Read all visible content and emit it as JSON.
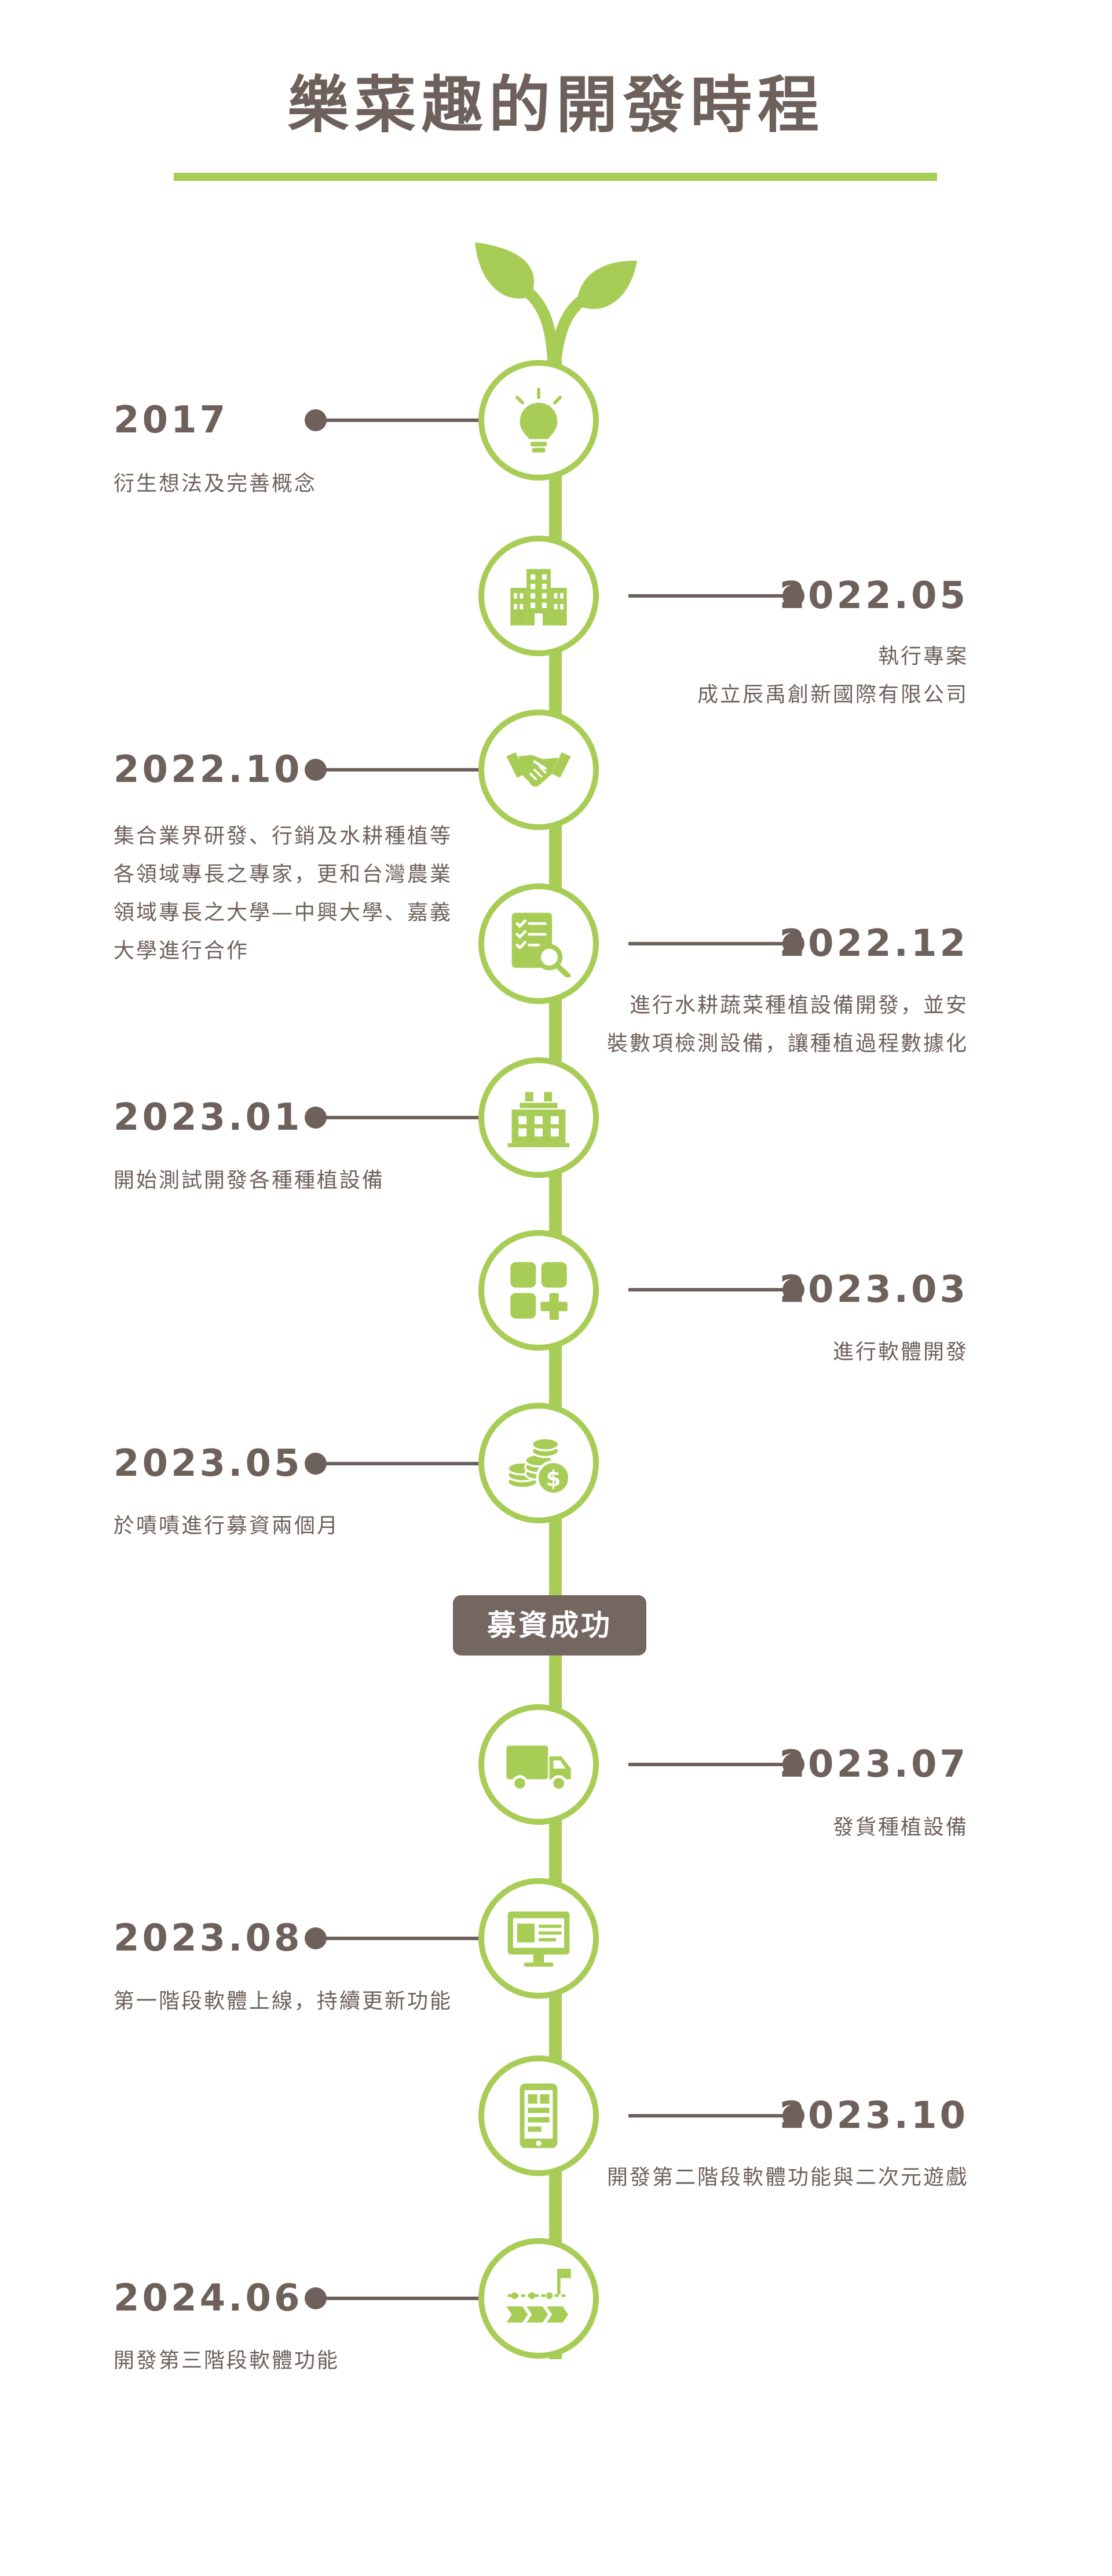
{
  "title": "樂菜趣的開發時程",
  "milestone_badge": "募資成功",
  "colors": {
    "accent": "#a8cd57",
    "text": "#6e615c",
    "badge_bg": "#746660"
  },
  "events": [
    {
      "date": "2017",
      "description": "衍生想法及完善概念",
      "icon": "lightbulb-icon",
      "side": "left"
    },
    {
      "date": "2022.05",
      "description": "執行專案\n成立辰禹創新國際有限公司",
      "icon": "building-icon",
      "side": "right"
    },
    {
      "date": "2022.10",
      "description": "集合業界研發、行銷及水耕種植等\n各領域專長之專家，更和台灣農業\n領域專長之大學—中興大學、嘉義\n大學進行合作",
      "icon": "handshake-icon",
      "side": "left"
    },
    {
      "date": "2022.12",
      "description": "進行水耕蔬菜種植設備開發，並安\n裝數項檢測設備，讓種植過程數據化",
      "icon": "checklist-search-icon",
      "side": "right"
    },
    {
      "date": "2023.01",
      "description": "開始測試開發各種種植設備",
      "icon": "factory-icon",
      "side": "left"
    },
    {
      "date": "2023.03",
      "description": "進行軟體開發",
      "icon": "apps-add-icon",
      "side": "right"
    },
    {
      "date": "2023.05",
      "description": "於嘖嘖進行募資兩個月",
      "icon": "coins-icon",
      "side": "left"
    },
    {
      "date": "2023.07",
      "description": "發貨種植設備",
      "icon": "truck-icon",
      "side": "right"
    },
    {
      "date": "2023.08",
      "description": "第一階段軟體上線，持續更新功能",
      "icon": "monitor-icon",
      "side": "left"
    },
    {
      "date": "2023.10",
      "description": "開發第二階段軟體功能與二次元遊戲",
      "icon": "mobile-app-icon",
      "side": "right"
    },
    {
      "date": "2024.06",
      "description": "開發第三階段軟體功能",
      "icon": "roadmap-flag-icon",
      "side": "left"
    }
  ]
}
